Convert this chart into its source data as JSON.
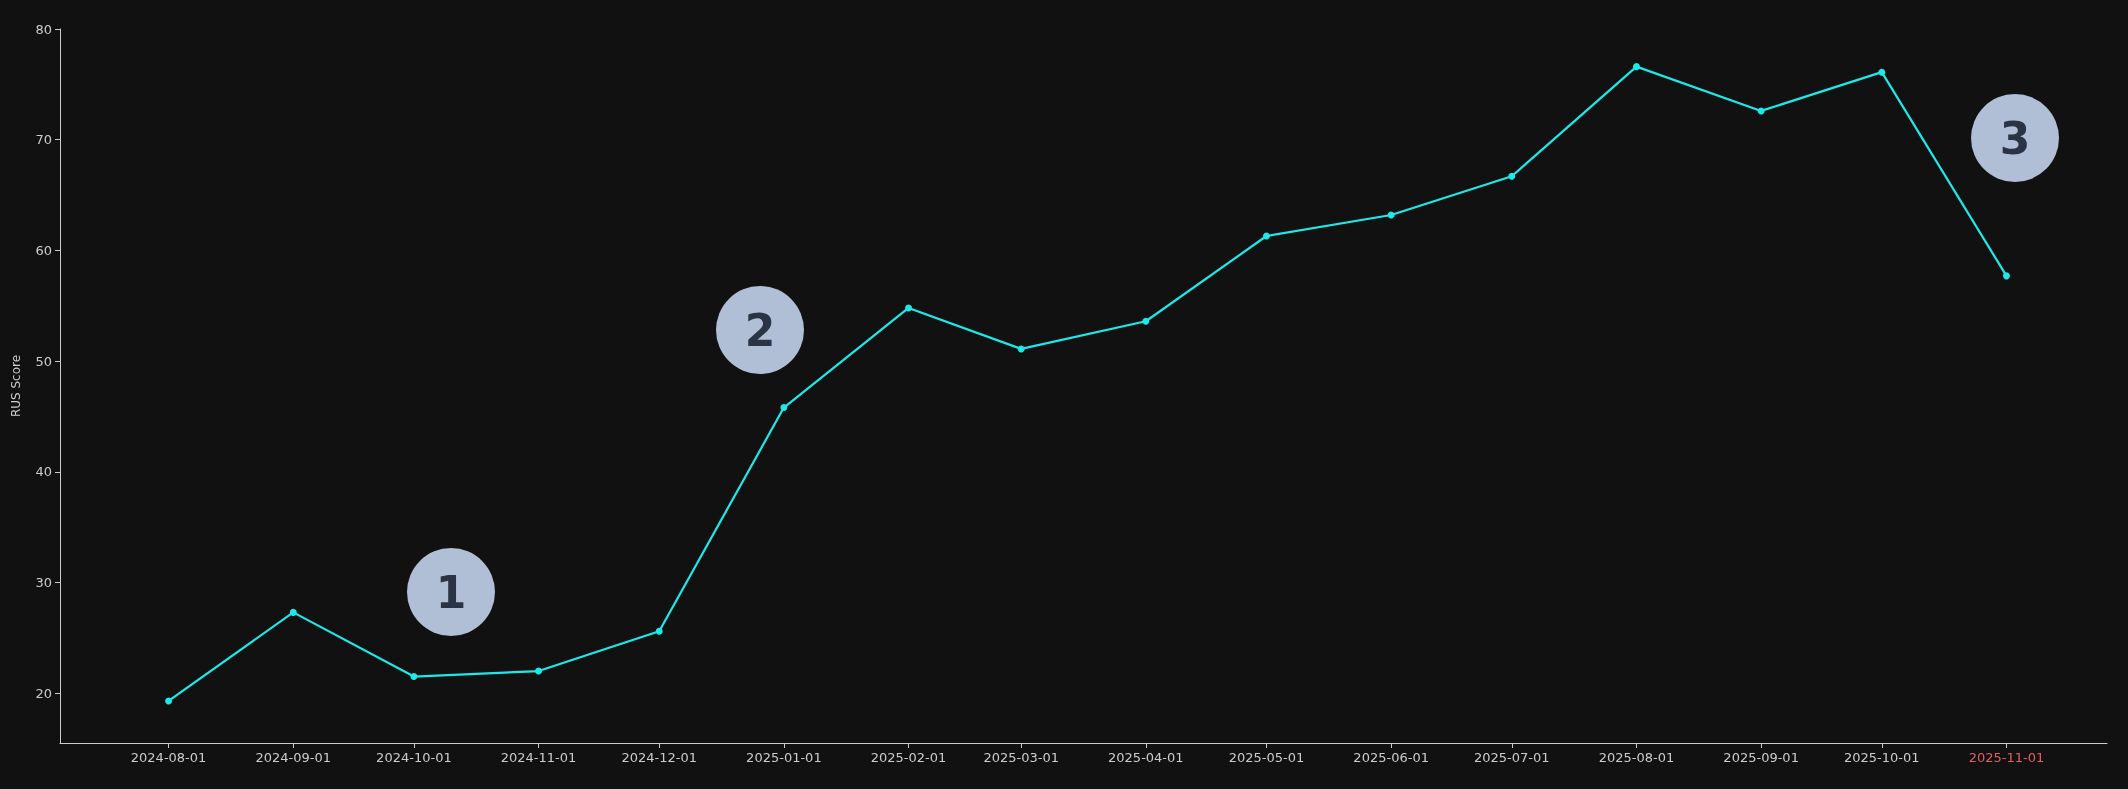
{
  "chart_data": {
    "type": "line",
    "ylabel": "RUS Score",
    "x": [
      "2024-08-01",
      "2024-09-01",
      "2024-10-01",
      "2024-11-01",
      "2024-12-01",
      "2025-01-01",
      "2025-02-01",
      "2025-03-01",
      "2025-04-01",
      "2025-05-01",
      "2025-06-01",
      "2025-07-01",
      "2025-08-01",
      "2025-09-01",
      "2025-10-01",
      "2025-11-01"
    ],
    "series": [
      {
        "color": "#1de9e9",
        "values": [
          19.3,
          27.3,
          21.5,
          22.0,
          25.6,
          45.8,
          54.8,
          51.1,
          53.6,
          61.3,
          63.2,
          66.7,
          76.6,
          72.6,
          76.1,
          57.7
        ]
      }
    ],
    "xlim": [
      "2024-07-05",
      "2025-11-26"
    ],
    "xticks": [
      "2024-08-01",
      "2024-09-01",
      "2024-10-01",
      "2024-11-01",
      "2024-12-01",
      "2025-01-01",
      "2025-02-01",
      "2025-03-01",
      "2025-04-01",
      "2025-05-01",
      "2025-06-01",
      "2025-07-01",
      "2025-08-01",
      "2025-09-01",
      "2025-10-01",
      "2025-11-01"
    ],
    "ylim": [
      15.5,
      80
    ],
    "yticks": [
      20,
      30,
      40,
      50,
      60,
      70,
      80
    ],
    "annotations": [
      "1",
      "2",
      "3"
    ],
    "grid": false,
    "marker": "circle",
    "line_style": "solid"
  }
}
